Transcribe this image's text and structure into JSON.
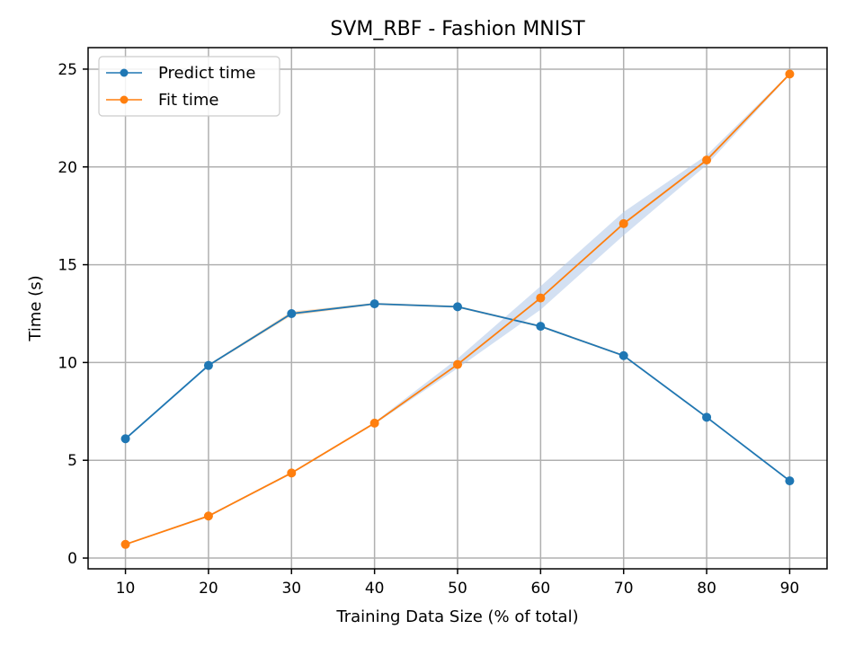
{
  "chart_data": {
    "type": "line",
    "title": "SVM_RBF - Fashion MNIST",
    "xlabel": "Training Data Size (% of total)",
    "ylabel": "Time (s)",
    "x": [
      10,
      20,
      30,
      40,
      50,
      60,
      70,
      80,
      90
    ],
    "xlim": [
      5.5,
      94.5
    ],
    "ylim": [
      -0.55,
      26.1
    ],
    "xticks": [
      10,
      20,
      30,
      40,
      50,
      60,
      70,
      80,
      90
    ],
    "yticks": [
      0,
      5,
      10,
      15,
      20,
      25
    ],
    "grid": true,
    "legend": "top-left",
    "series": [
      {
        "name": "Predict time",
        "color": "#1f77b4",
        "values": [
          6.1,
          9.85,
          12.5,
          13.0,
          12.85,
          11.85,
          10.35,
          7.2,
          3.95
        ],
        "band_lower": [
          6.1,
          9.8,
          12.4,
          12.95,
          12.8,
          11.8,
          10.3,
          7.15,
          3.95
        ],
        "band_upper": [
          6.15,
          9.9,
          12.6,
          13.05,
          12.9,
          11.9,
          10.4,
          7.25,
          4.0
        ]
      },
      {
        "name": "Fit time",
        "color": "#ff7f0e",
        "values": [
          0.7,
          2.15,
          4.35,
          6.9,
          9.9,
          13.3,
          17.1,
          20.35,
          24.75
        ],
        "band_lower": [
          0.7,
          2.1,
          4.3,
          6.85,
          9.7,
          12.7,
          16.5,
          20.1,
          24.7
        ],
        "band_upper": [
          0.75,
          2.2,
          4.4,
          6.95,
          10.2,
          13.9,
          17.7,
          20.6,
          24.8
        ]
      }
    ]
  }
}
